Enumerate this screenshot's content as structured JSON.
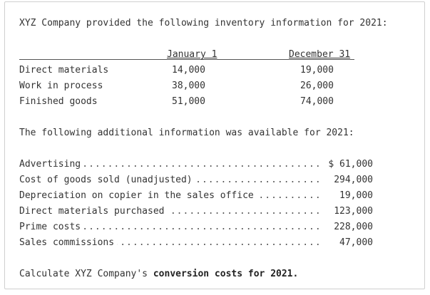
{
  "intro": "XYZ Company provided the following inventory information for 2021:",
  "inventory_table": {
    "columns": [
      "January 1",
      "December 31"
    ],
    "rows": [
      {
        "label": "Direct materials",
        "jan": "14,000",
        "dec": "19,000"
      },
      {
        "label": "Work in process",
        "jan": "38,000",
        "dec": "26,000"
      },
      {
        "label": "Finished goods",
        "jan": "51,000",
        "dec": "74,000"
      }
    ]
  },
  "additional_intro": "The following additional information was available for 2021:",
  "additional_items": [
    {
      "label": "Advertising",
      "value": "$ 61,000"
    },
    {
      "label": "Cost of goods sold (unadjusted)",
      "value": "294,000"
    },
    {
      "label": "Depreciation on copier in the sales office",
      "value": "19,000"
    },
    {
      "label": "Direct materials purchased",
      "value": "123,000"
    },
    {
      "label": "Prime costs",
      "value": "228,000"
    },
    {
      "label": "Sales commissions",
      "value": "47,000"
    }
  ],
  "question": {
    "prefix": "Calculate XYZ Company's ",
    "emphasis": "conversion costs for 2021."
  }
}
